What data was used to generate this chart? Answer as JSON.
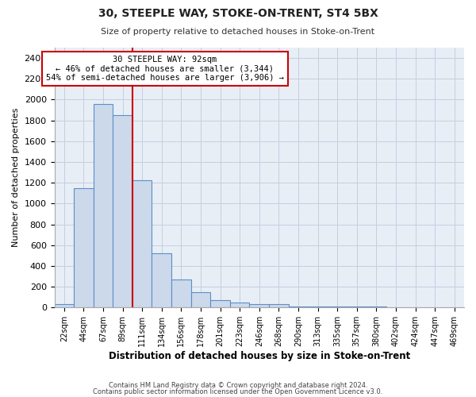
{
  "title1": "30, STEEPLE WAY, STOKE-ON-TRENT, ST4 5BX",
  "title2": "Size of property relative to detached houses in Stoke-on-Trent",
  "xlabel": "Distribution of detached houses by size in Stoke-on-Trent",
  "ylabel": "Number of detached properties",
  "footer1": "Contains HM Land Registry data © Crown copyright and database right 2024.",
  "footer2": "Contains public sector information licensed under the Open Government Licence v3.0.",
  "annotation_line1": "30 STEEPLE WAY: 92sqm",
  "annotation_line2": "← 46% of detached houses are smaller (3,344)",
  "annotation_line3": "54% of semi-detached houses are larger (3,906) →",
  "bar_color": "#ccd9ea",
  "bar_edge_color": "#5b8fc9",
  "highlight_line_color": "#cc0000",
  "annotation_box_facecolor": "#ffffff",
  "annotation_box_edgecolor": "#cc0000",
  "bg_color": "#e8eef6",
  "grid_color": "#c5cfe0",
  "categories": [
    "22sqm",
    "44sqm",
    "67sqm",
    "89sqm",
    "111sqm",
    "134sqm",
    "156sqm",
    "178sqm",
    "201sqm",
    "223sqm",
    "246sqm",
    "268sqm",
    "290sqm",
    "313sqm",
    "335sqm",
    "357sqm",
    "380sqm",
    "402sqm",
    "424sqm",
    "447sqm",
    "469sqm"
  ],
  "values": [
    30,
    1150,
    1960,
    1850,
    1225,
    520,
    270,
    150,
    75,
    45,
    35,
    35,
    8,
    8,
    8,
    8,
    8,
    3,
    3,
    3,
    3
  ],
  "ylim": [
    0,
    2500
  ],
  "yticks": [
    0,
    200,
    400,
    600,
    800,
    1000,
    1200,
    1400,
    1600,
    1800,
    2000,
    2200,
    2400
  ],
  "red_line_bar_index": 3,
  "bar_width": 1.0
}
